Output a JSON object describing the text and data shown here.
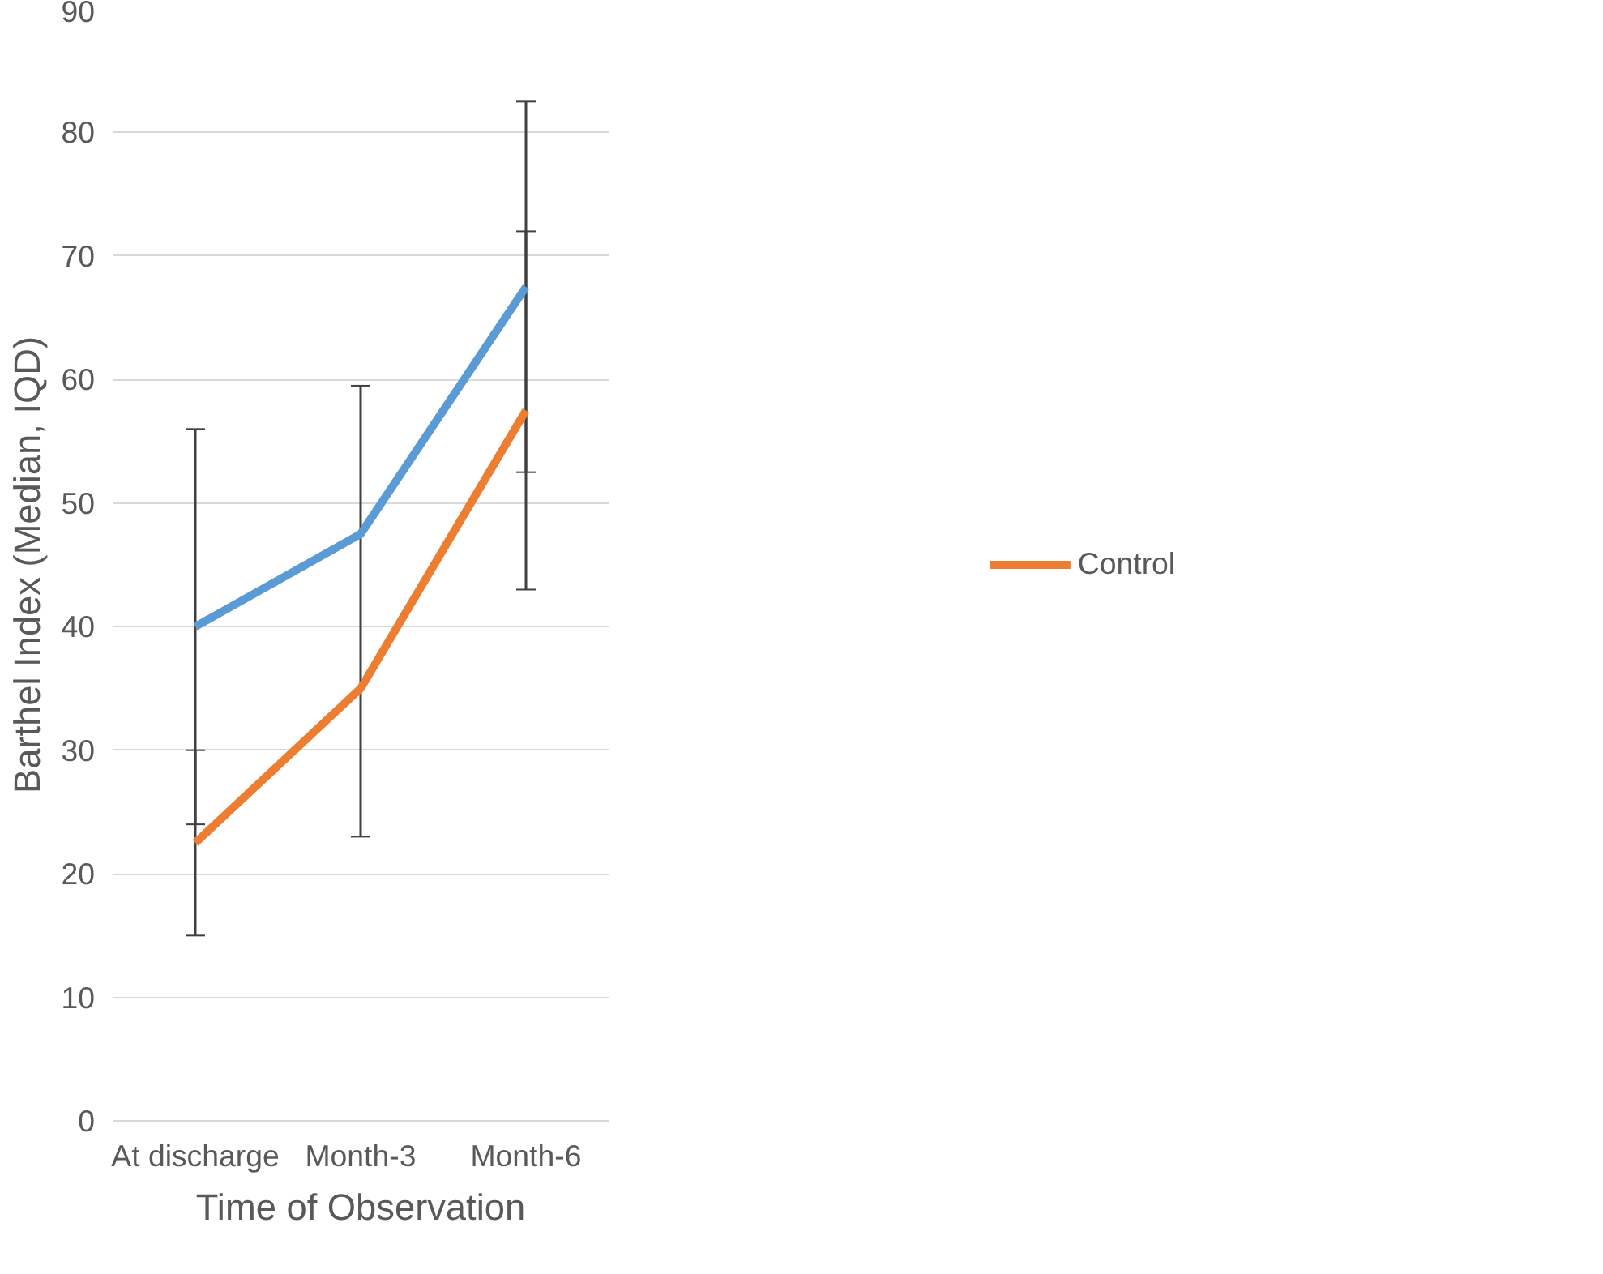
{
  "chart_data": {
    "type": "line",
    "xlabel": "Time of Observation",
    "ylabel": "Barthel Index (Median, IQD)",
    "categories": [
      "At discharge",
      "Month-3",
      "Month-6"
    ],
    "series": [
      {
        "color": "#5b9bd5",
        "values": [
          40,
          47.5,
          67.5
        ],
        "errors": [
          [
            24,
            56
          ],
          [
            23,
            59.5
          ],
          [
            52.5,
            82.5
          ]
        ]
      },
      {
        "name": "Control",
        "color": "#ed7d31",
        "values": [
          22.5,
          35,
          57.5
        ],
        "errors": [
          [
            15,
            30
          ],
          null,
          [
            43,
            72
          ]
        ]
      }
    ],
    "ylim": [
      0,
      90
    ],
    "yticks": [
      0,
      10,
      20,
      30,
      40,
      50,
      60,
      70,
      80,
      90
    ],
    "grid": "y",
    "legend": "right",
    "marker": "none",
    "line_style": "solid"
  }
}
